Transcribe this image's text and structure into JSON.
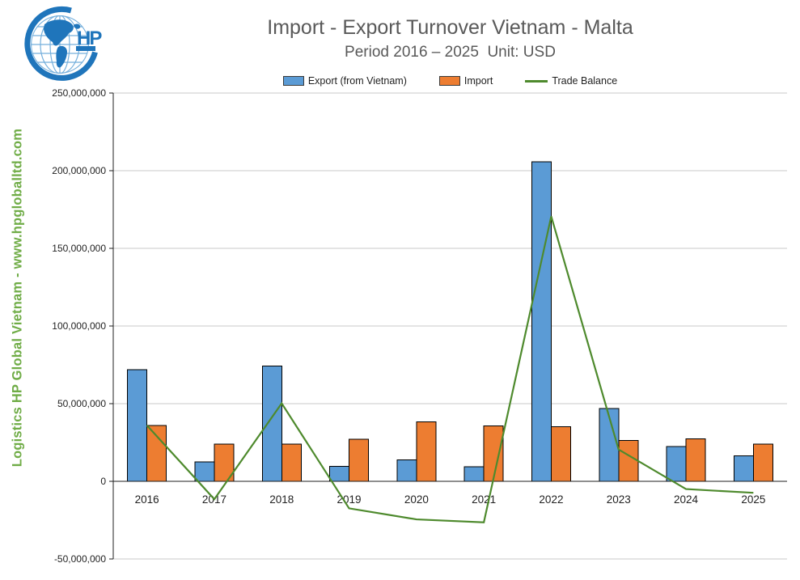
{
  "header": {
    "title": "Import - Export Turnover Vietnam - Malta",
    "subtitle": "Period 2016 – 2025  Unit: USD"
  },
  "watermark": "Logistics HP Global Vietnam - www.hpgloballtd.com",
  "logo": {
    "text": "HP"
  },
  "colors": {
    "export_blue": "#5B9BD5",
    "import_orange": "#ED7D31",
    "balance_green": "#4E8A2D",
    "watermark_green": "#6FAC46",
    "title_gray": "#595959",
    "logo_blue": "#1F75BB",
    "gridline_gray": "#C9C9C9",
    "axis_black": "#1f1f1f"
  },
  "chart_data": {
    "type": "bar",
    "title": "Import - Export Turnover Vietnam - Malta",
    "subtitle": "Period 2016 – 2025  Unit: USD",
    "xlabel": "",
    "ylabel": "",
    "categories": [
      "2016",
      "2017",
      "2018",
      "2019",
      "2020",
      "2021",
      "2022",
      "2023",
      "2024",
      "2025"
    ],
    "series": [
      {
        "name": "Export (from Vietnam)",
        "type": "bar",
        "color": "#5B9BD5",
        "values": [
          72000000,
          12400000,
          74100000,
          9600000,
          13900000,
          9300000,
          205800000,
          46900000,
          22400000,
          16500000
        ]
      },
      {
        "name": "Import",
        "type": "bar",
        "color": "#ED7D31",
        "values": [
          36000000,
          23900000,
          23900000,
          27000000,
          38400000,
          35700000,
          35200000,
          26400000,
          27400000,
          23900000
        ]
      },
      {
        "name": "Trade Balance",
        "type": "line",
        "color": "#4E8A2D",
        "values": [
          36000000,
          -11500000,
          50200000,
          -17400000,
          -24500000,
          -26400000,
          170600000,
          20500000,
          -5000000,
          -7400000
        ]
      }
    ],
    "ylim": [
      -50000000,
      250000000
    ],
    "ytick_step": 50000000,
    "ytick_labels": [
      "-50,000,000",
      "0",
      "50,000,000",
      "100,000,000",
      "150,000,000",
      "200,000,000",
      "250,000,000"
    ],
    "grid": true,
    "legend_position": "top"
  }
}
